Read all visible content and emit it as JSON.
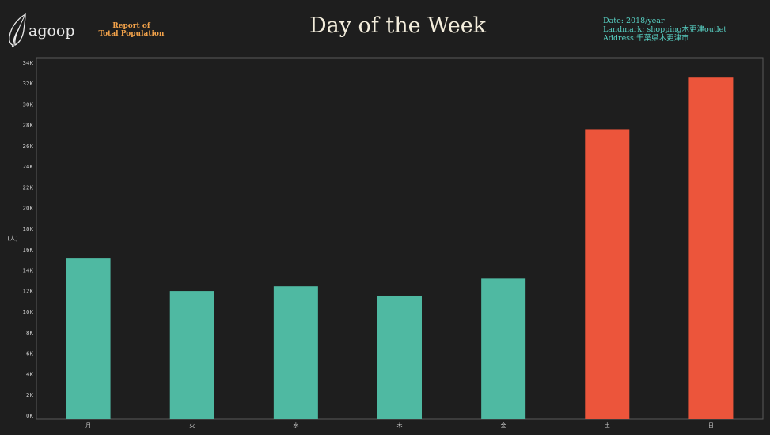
{
  "header": {
    "logo_text": "agoop",
    "report_line1": "Report of",
    "report_line2": "Total Population",
    "title": "Day of the Week",
    "date": "Date: 2018/year",
    "landmark": "Landmark: shopping木更津outlet",
    "address": "Address:千葉県木更津市"
  },
  "colors": {
    "weekday": "#4fb9a2",
    "weekend": "#ec553b",
    "background": "#1e1e1e",
    "title": "#f3eddc",
    "meta": "#58d1c4",
    "report": "#f2a24a"
  },
  "chart_data": {
    "type": "bar",
    "title": "Day of the Week",
    "ylabel": "(人)",
    "xlabel": "",
    "categories": [
      "月",
      "火",
      "水",
      "木",
      "金",
      "土",
      "日"
    ],
    "values": [
      15200,
      12000,
      12450,
      11550,
      13200,
      27600,
      32650
    ],
    "highlight": [
      false,
      false,
      false,
      false,
      false,
      true,
      true
    ],
    "ylim": [
      0,
      34000
    ],
    "yticks": [
      0,
      2000,
      4000,
      6000,
      8000,
      10000,
      12000,
      14000,
      16000,
      18000,
      20000,
      22000,
      24000,
      26000,
      28000,
      30000,
      32000,
      34000
    ],
    "ytick_labels": [
      "0K",
      "2K",
      "4K",
      "6K",
      "8K",
      "10K",
      "12K",
      "14K",
      "16K",
      "18K",
      "20K",
      "22K",
      "24K",
      "26K",
      "28K",
      "30K",
      "32K",
      "34K"
    ],
    "grid": false,
    "legend": "none"
  }
}
